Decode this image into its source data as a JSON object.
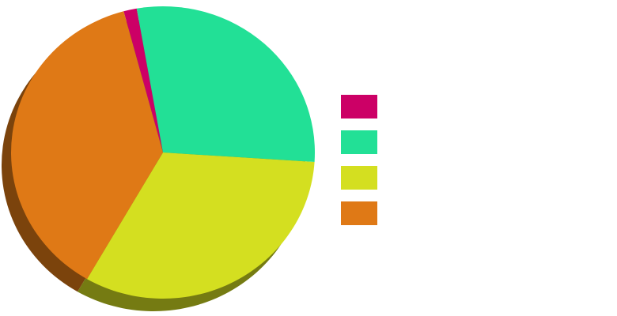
{
  "chart_data": {
    "type": "pie",
    "series": [
      {
        "name": "",
        "value": 1.4,
        "color": "#cc0066"
      },
      {
        "name": "",
        "value": 28.8,
        "color": "#22e096"
      },
      {
        "name": "",
        "value": 32.3,
        "color": "#d4df20"
      },
      {
        "name": "",
        "value": 37.5,
        "color": "#df7916"
      }
    ],
    "legend_position": "right",
    "style": "3d-shadow"
  }
}
